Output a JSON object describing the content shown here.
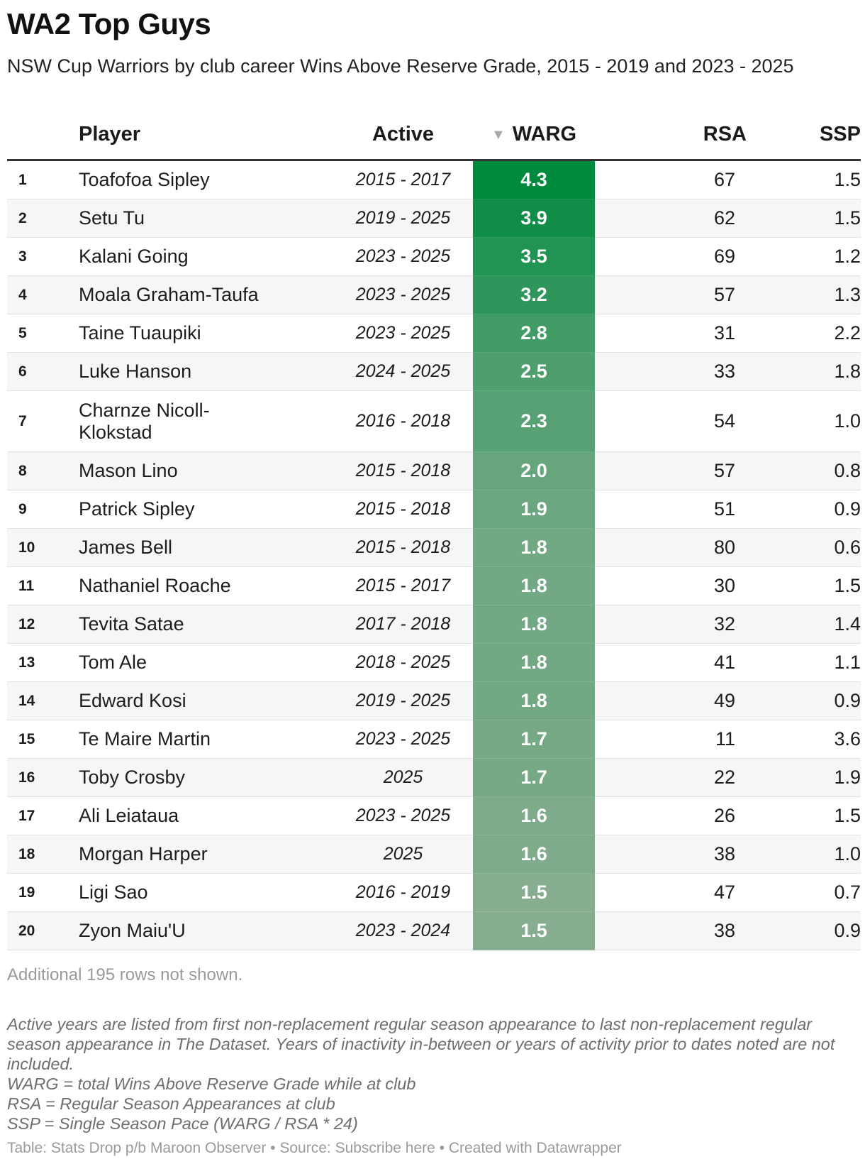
{
  "title": "WA2 Top Guys",
  "subtitle": "NSW Cup Warriors by club career Wins Above Reserve Grade, 2015 - 2019 and 2023 - 2025",
  "columns": {
    "player": "Player",
    "active": "Active",
    "sort_icon": "▼",
    "warg": "WARG",
    "rsa": "RSA",
    "ssp": "SSP"
  },
  "rows": [
    {
      "rank": "1",
      "player": "Toafofoa Sipley",
      "active": "2015 - 2017",
      "warg": "4.3",
      "rsa": "67",
      "ssp": "1.5"
    },
    {
      "rank": "2",
      "player": "Setu Tu",
      "active": "2019 - 2025",
      "warg": "3.9",
      "rsa": "62",
      "ssp": "1.5"
    },
    {
      "rank": "3",
      "player": "Kalani Going",
      "active": "2023 - 2025",
      "warg": "3.5",
      "rsa": "69",
      "ssp": "1.2"
    },
    {
      "rank": "4",
      "player": "Moala Graham-Taufa",
      "active": "2023 - 2025",
      "warg": "3.2",
      "rsa": "57",
      "ssp": "1.3"
    },
    {
      "rank": "5",
      "player": "Taine Tuaupiki",
      "active": "2023 - 2025",
      "warg": "2.8",
      "rsa": "31",
      "ssp": "2.2"
    },
    {
      "rank": "6",
      "player": "Luke Hanson",
      "active": "2024 - 2025",
      "warg": "2.5",
      "rsa": "33",
      "ssp": "1.8"
    },
    {
      "rank": "7",
      "player": "Charnze Nicoll-Klokstad",
      "active": "2016 - 2018",
      "warg": "2.3",
      "rsa": "54",
      "ssp": "1.0"
    },
    {
      "rank": "8",
      "player": "Mason Lino",
      "active": "2015 - 2018",
      "warg": "2.0",
      "rsa": "57",
      "ssp": "0.8"
    },
    {
      "rank": "9",
      "player": "Patrick Sipley",
      "active": "2015 - 2018",
      "warg": "1.9",
      "rsa": "51",
      "ssp": "0.9"
    },
    {
      "rank": "10",
      "player": "James Bell",
      "active": "2015 - 2018",
      "warg": "1.8",
      "rsa": "80",
      "ssp": "0.6"
    },
    {
      "rank": "11",
      "player": "Nathaniel Roache",
      "active": "2015 - 2017",
      "warg": "1.8",
      "rsa": "30",
      "ssp": "1.5"
    },
    {
      "rank": "12",
      "player": "Tevita Satae",
      "active": "2017 - 2018",
      "warg": "1.8",
      "rsa": "32",
      "ssp": "1.4"
    },
    {
      "rank": "13",
      "player": "Tom Ale",
      "active": "2018 - 2025",
      "warg": "1.8",
      "rsa": "41",
      "ssp": "1.1"
    },
    {
      "rank": "14",
      "player": "Edward Kosi",
      "active": "2019 - 2025",
      "warg": "1.8",
      "rsa": "49",
      "ssp": "0.9"
    },
    {
      "rank": "15",
      "player": "Te Maire Martin",
      "active": "2023 - 2025",
      "warg": "1.7",
      "rsa": "11",
      "ssp": "3.6"
    },
    {
      "rank": "16",
      "player": "Toby Crosby",
      "active": "2025",
      "warg": "1.7",
      "rsa": "22",
      "ssp": "1.9"
    },
    {
      "rank": "17",
      "player": "Ali Leiataua",
      "active": "2023 - 2025",
      "warg": "1.6",
      "rsa": "26",
      "ssp": "1.5"
    },
    {
      "rank": "18",
      "player": "Morgan Harper",
      "active": "2025",
      "warg": "1.6",
      "rsa": "38",
      "ssp": "1.0"
    },
    {
      "rank": "19",
      "player": "Ligi Sao",
      "active": "2016 - 2019",
      "warg": "1.5",
      "rsa": "47",
      "ssp": "0.7"
    },
    {
      "rank": "20",
      "player": "Zyon Maiu'U",
      "active": "2023 - 2024",
      "warg": "1.5",
      "rsa": "38",
      "ssp": "0.9"
    }
  ],
  "heat_colors": {
    "high": "#008a3e",
    "low": "#86ad90"
  },
  "rows_not_shown": "Additional 195 rows not shown.",
  "notes": [
    "Active years are listed from first non-replacement regular season appearance to last non-replacement regular season appearance in The Dataset. Years of inactivity in-between or years of activity prior to dates noted are not included.",
    "WARG = total Wins Above Reserve Grade while at club",
    "RSA = Regular Season Appearances at club",
    "SSP = Single Season Pace (WARG / RSA * 24)"
  ],
  "footer": "Table: Stats Drop p/b Maroon Observer • Source: Subscribe here • Created with Datawrapper"
}
